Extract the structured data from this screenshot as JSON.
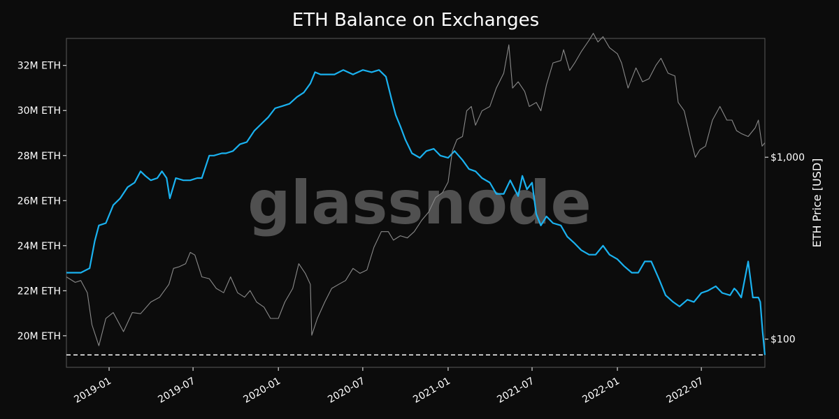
{
  "chart_data": {
    "type": "line",
    "title": "ETH Balance on Exchanges",
    "watermark": "glassnode",
    "background_color": "#0c0c0c",
    "grid": false,
    "legend": "none",
    "x_range": [
      "2018-10-01",
      "2022-11-15"
    ],
    "x_tick_labels": [
      "2019-01",
      "2019-07",
      "2020-01",
      "2020-07",
      "2021-01",
      "2021-07",
      "2022-01",
      "2022-07"
    ],
    "y_left": {
      "label": "",
      "range": [
        18.6,
        33.2
      ],
      "tick_labels": [
        "20M ETH",
        "22M ETH",
        "24M ETH",
        "26M ETH",
        "28M ETH",
        "30M ETH",
        "32M ETH"
      ]
    },
    "y_right": {
      "label": "ETH Price [USD]",
      "scale": "log",
      "range": [
        70,
        4500
      ],
      "tick_labels": [
        "$100",
        "$1,000"
      ]
    },
    "reference_line": {
      "value": 19.15,
      "style": "dashed",
      "color": "#ffffff"
    },
    "series": [
      {
        "axis": "left",
        "color": "#1ab2f0",
        "x": [
          "2018-10-01",
          "2018-11-01",
          "2018-11-20",
          "2018-12-01",
          "2018-12-10",
          "2018-12-25",
          "2019-01-10",
          "2019-01-25",
          "2019-02-10",
          "2019-02-25",
          "2019-03-10",
          "2019-03-20",
          "2019-04-01",
          "2019-04-15",
          "2019-04-25",
          "2019-05-05",
          "2019-05-12",
          "2019-05-25",
          "2019-06-10",
          "2019-06-25",
          "2019-07-10",
          "2019-07-20",
          "2019-08-05",
          "2019-08-15",
          "2019-09-01",
          "2019-09-10",
          "2019-09-25",
          "2019-10-10",
          "2019-10-25",
          "2019-11-10",
          "2019-11-25",
          "2019-12-10",
          "2019-12-25",
          "2020-01-10",
          "2020-01-25",
          "2020-02-10",
          "2020-02-25",
          "2020-03-10",
          "2020-03-20",
          "2020-04-01",
          "2020-04-20",
          "2020-05-01",
          "2020-05-20",
          "2020-06-10",
          "2020-07-01",
          "2020-07-20",
          "2020-08-05",
          "2020-08-20",
          "2020-09-01",
          "2020-09-10",
          "2020-09-20",
          "2020-10-01",
          "2020-10-15",
          "2020-11-01",
          "2020-11-15",
          "2020-12-01",
          "2020-12-15",
          "2021-01-01",
          "2021-01-15",
          "2021-02-01",
          "2021-02-15",
          "2021-03-01",
          "2021-03-15",
          "2021-04-01",
          "2021-04-15",
          "2021-05-01",
          "2021-05-15",
          "2021-06-01",
          "2021-06-10",
          "2021-06-20",
          "2021-07-01",
          "2021-07-10",
          "2021-07-20",
          "2021-08-01",
          "2021-08-15",
          "2021-09-01",
          "2021-09-15",
          "2021-10-01",
          "2021-10-15",
          "2021-11-01",
          "2021-11-15",
          "2021-12-01",
          "2021-12-15",
          "2022-01-01",
          "2022-01-15",
          "2022-02-01",
          "2022-02-15",
          "2022-03-01",
          "2022-03-15",
          "2022-04-01",
          "2022-04-15",
          "2022-05-01",
          "2022-05-15",
          "2022-06-01",
          "2022-06-15",
          "2022-07-01",
          "2022-07-15",
          "2022-08-01",
          "2022-08-15",
          "2022-09-01",
          "2022-09-10",
          "2022-09-15",
          "2022-09-25",
          "2022-10-10",
          "2022-10-20",
          "2022-11-01",
          "2022-11-05",
          "2022-11-10",
          "2022-11-15"
        ],
        "values": [
          22.8,
          22.8,
          23.0,
          24.2,
          24.9,
          25.0,
          25.8,
          26.1,
          26.6,
          26.8,
          27.3,
          27.1,
          26.9,
          27.0,
          27.3,
          27.0,
          26.1,
          27.0,
          26.9,
          26.9,
          27.0,
          27.0,
          28.0,
          28.0,
          28.1,
          28.1,
          28.2,
          28.5,
          28.6,
          29.1,
          29.4,
          29.7,
          30.1,
          30.2,
          30.3,
          30.6,
          30.8,
          31.2,
          31.7,
          31.6,
          31.6,
          31.6,
          31.8,
          31.6,
          31.8,
          31.7,
          31.8,
          31.5,
          30.5,
          29.8,
          29.3,
          28.7,
          28.1,
          27.9,
          28.2,
          28.3,
          28.0,
          27.9,
          28.2,
          27.8,
          27.4,
          27.3,
          27.0,
          26.8,
          26.3,
          26.3,
          26.9,
          26.2,
          27.1,
          26.5,
          26.8,
          25.4,
          24.9,
          25.3,
          25.0,
          24.9,
          24.4,
          24.1,
          23.8,
          23.6,
          23.6,
          24.0,
          23.6,
          23.4,
          23.1,
          22.8,
          22.8,
          23.3,
          23.3,
          22.5,
          21.8,
          21.5,
          21.3,
          21.6,
          21.5,
          21.9,
          22.0,
          22.2,
          21.9,
          21.8,
          22.1,
          22.0,
          21.7,
          23.3,
          21.7,
          21.7,
          21.5,
          20.2,
          19.15
        ]
      },
      {
        "axis": "right",
        "color": "#8a8a8a",
        "x": [
          "2018-10-01",
          "2018-10-20",
          "2018-11-01",
          "2018-11-15",
          "2018-11-25",
          "2018-12-10",
          "2018-12-25",
          "2019-01-10",
          "2019-02-01",
          "2019-02-20",
          "2019-03-10",
          "2019-04-01",
          "2019-04-20",
          "2019-05-10",
          "2019-05-20",
          "2019-06-01",
          "2019-06-15",
          "2019-06-25",
          "2019-07-05",
          "2019-07-20",
          "2019-08-05",
          "2019-08-20",
          "2019-09-05",
          "2019-09-20",
          "2019-10-05",
          "2019-10-20",
          "2019-11-01",
          "2019-11-15",
          "2019-12-01",
          "2019-12-15",
          "2020-01-01",
          "2020-01-15",
          "2020-02-01",
          "2020-02-14",
          "2020-02-28",
          "2020-03-10",
          "2020-03-13",
          "2020-03-25",
          "2020-04-10",
          "2020-04-25",
          "2020-05-10",
          "2020-05-25",
          "2020-06-10",
          "2020-06-25",
          "2020-07-10",
          "2020-07-25",
          "2020-08-10",
          "2020-08-25",
          "2020-09-05",
          "2020-09-20",
          "2020-10-05",
          "2020-10-20",
          "2020-11-05",
          "2020-11-20",
          "2020-12-05",
          "2020-12-20",
          "2021-01-01",
          "2021-01-10",
          "2021-01-20",
          "2021-02-01",
          "2021-02-10",
          "2021-02-20",
          "2021-03-01",
          "2021-03-15",
          "2021-04-01",
          "2021-04-15",
          "2021-05-01",
          "2021-05-12",
          "2021-05-20",
          "2021-06-01",
          "2021-06-15",
          "2021-06-25",
          "2021-07-10",
          "2021-07-20",
          "2021-08-01",
          "2021-08-15",
          "2021-09-01",
          "2021-09-07",
          "2021-09-20",
          "2021-10-01",
          "2021-10-15",
          "2021-11-01",
          "2021-11-10",
          "2021-11-20",
          "2021-12-01",
          "2021-12-15",
          "2022-01-01",
          "2022-01-10",
          "2022-01-24",
          "2022-02-10",
          "2022-02-24",
          "2022-03-10",
          "2022-03-25",
          "2022-04-05",
          "2022-04-20",
          "2022-05-05",
          "2022-05-12",
          "2022-05-25",
          "2022-06-10",
          "2022-06-18",
          "2022-06-28",
          "2022-07-10",
          "2022-07-25",
          "2022-08-10",
          "2022-08-25",
          "2022-09-05",
          "2022-09-15",
          "2022-09-25",
          "2022-10-10",
          "2022-10-25",
          "2022-11-01",
          "2022-11-09",
          "2022-11-15"
        ],
        "values": [
          220,
          205,
          210,
          180,
          120,
          92,
          130,
          140,
          110,
          140,
          138,
          160,
          170,
          200,
          245,
          250,
          260,
          300,
          290,
          220,
          215,
          190,
          180,
          220,
          180,
          170,
          185,
          160,
          150,
          130,
          130,
          160,
          190,
          260,
          230,
          200,
          105,
          130,
          160,
          190,
          200,
          210,
          245,
          230,
          240,
          320,
          390,
          390,
          350,
          370,
          360,
          390,
          450,
          500,
          600,
          640,
          730,
          1080,
          1250,
          1300,
          1800,
          1900,
          1500,
          1800,
          1900,
          2400,
          2900,
          4150,
          2400,
          2600,
          2300,
          1900,
          2000,
          1800,
          2500,
          3300,
          3400,
          3900,
          3000,
          3300,
          3800,
          4400,
          4800,
          4300,
          4600,
          4000,
          3700,
          3300,
          2400,
          3100,
          2600,
          2700,
          3200,
          3500,
          2900,
          2800,
          2000,
          1800,
          1200,
          1000,
          1100,
          1150,
          1600,
          1900,
          1600,
          1600,
          1400,
          1350,
          1300,
          1450,
          1600,
          1150,
          1200
        ]
      }
    ]
  }
}
